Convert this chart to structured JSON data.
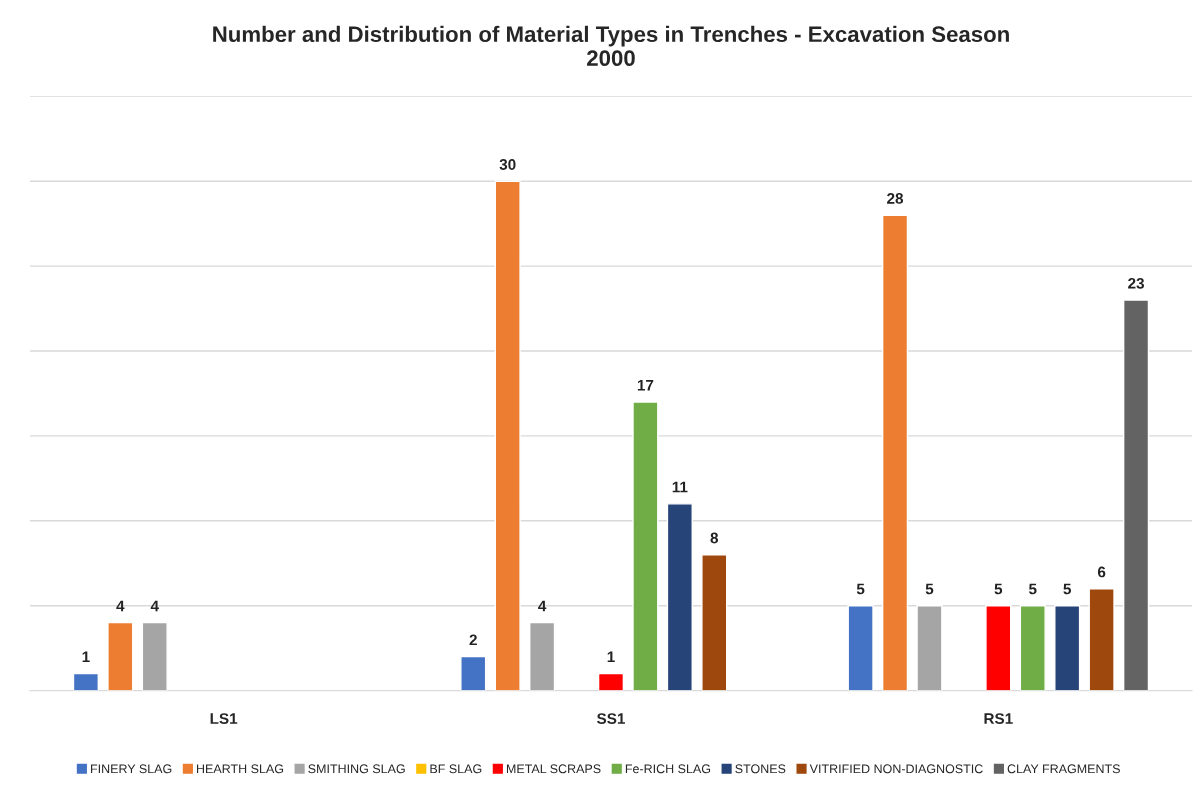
{
  "chart_data": {
    "type": "bar",
    "title": "Number and Distribution of Material Types in Trenches - Excavation Season\n2000",
    "categories": [
      "LS1",
      "SS1",
      "RS1"
    ],
    "series": [
      {
        "name": "FINERY SLAG",
        "color": "#4472c4",
        "values": [
          1,
          2,
          5
        ]
      },
      {
        "name": "HEARTH SLAG",
        "color": "#ed7d31",
        "values": [
          4,
          30,
          28
        ]
      },
      {
        "name": "SMITHING SLAG",
        "color": "#a5a5a5",
        "values": [
          4,
          4,
          5
        ]
      },
      {
        "name": "BF SLAG",
        "color": "#ffc000",
        "values": [
          null,
          null,
          null
        ]
      },
      {
        "name": "METAL SCRAPS",
        "color": "#ff0000",
        "values": [
          null,
          1,
          5
        ]
      },
      {
        "name": "Fe-RICH SLAG",
        "color": "#70ad47",
        "values": [
          null,
          17,
          5
        ]
      },
      {
        "name": "STONES",
        "color": "#264478",
        "values": [
          null,
          11,
          5
        ]
      },
      {
        "name": "VITRIFIED NON-DIAGNOSTIC",
        "color": "#9e480e",
        "values": [
          null,
          8,
          6
        ]
      },
      {
        "name": "CLAY FRAGMENTS",
        "color": "#636363",
        "values": [
          null,
          null,
          23
        ]
      }
    ],
    "ylim": [
      0,
      35
    ],
    "yticks": [
      {
        "value": 0,
        "label": null
      },
      {
        "value": 5,
        "label": null
      },
      {
        "value": 10,
        "label": null
      },
      {
        "value": 15,
        "label": null
      },
      {
        "value": 20,
        "label": null
      },
      {
        "value": 25,
        "label": null
      },
      {
        "value": 30,
        "label": null
      },
      {
        "value": 35,
        "label": null
      }
    ],
    "tick_labels": "x",
    "grid": "y",
    "legend": "bottom",
    "data_labels": true
  }
}
